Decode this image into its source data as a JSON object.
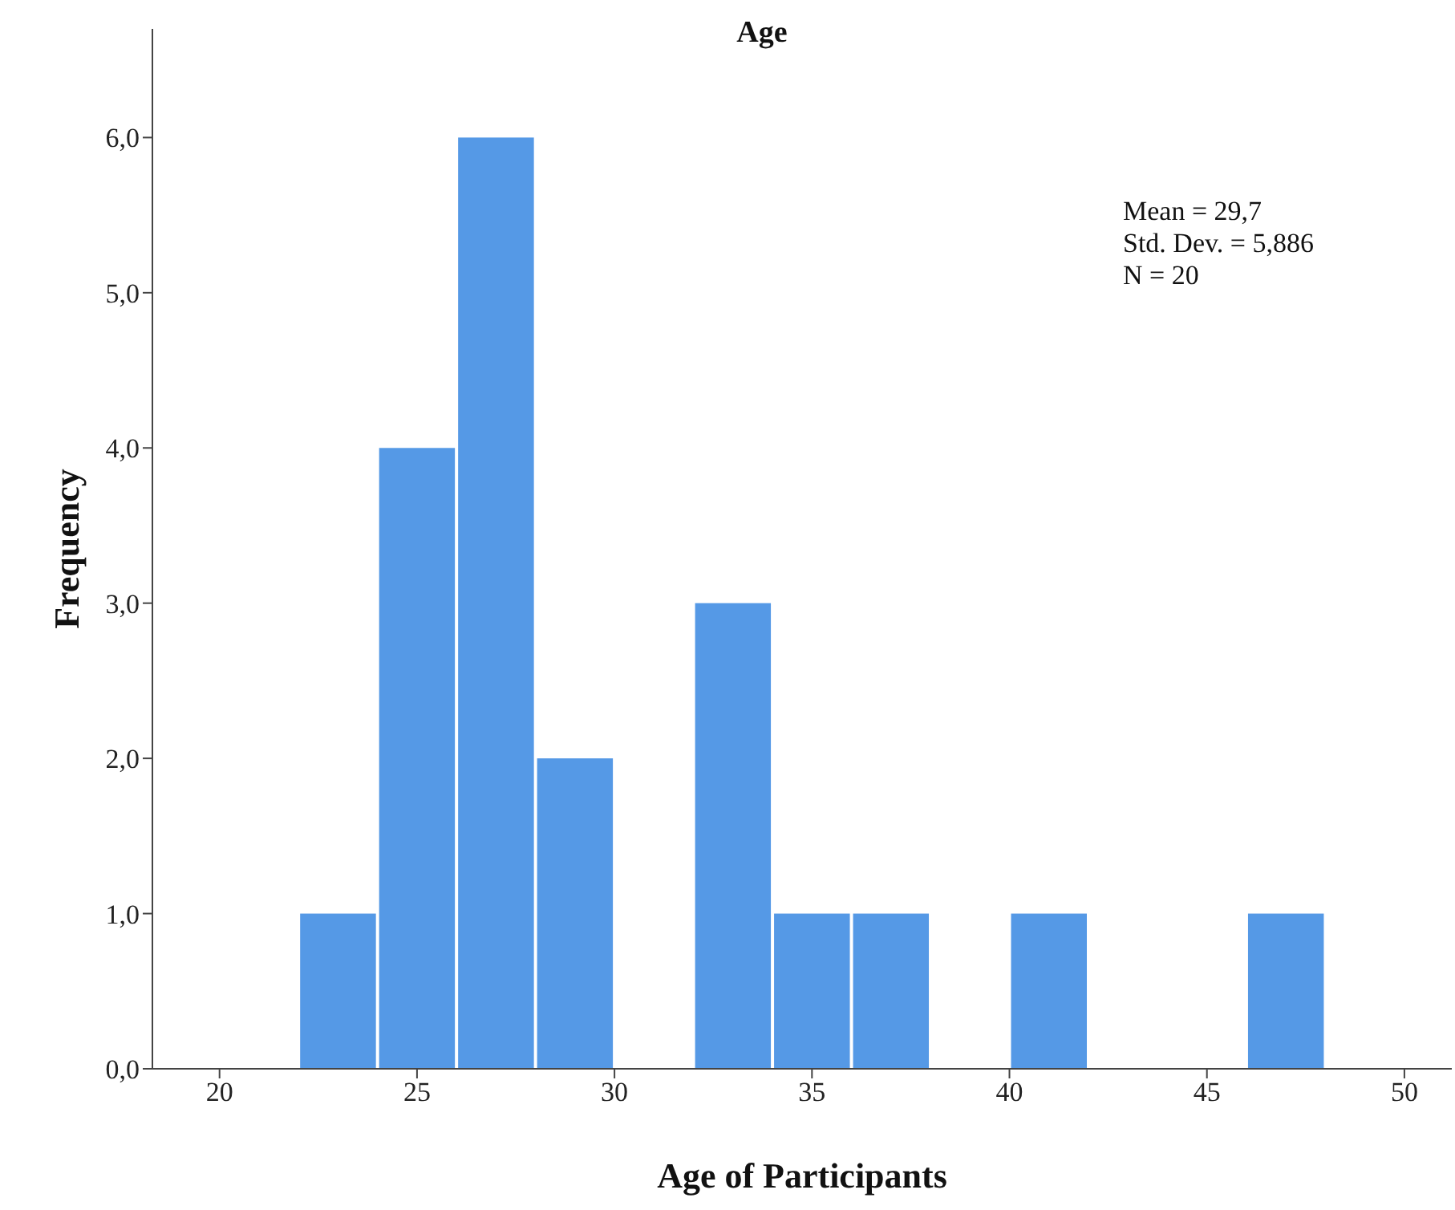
{
  "chart_data": {
    "type": "histogram",
    "title": "Age",
    "xlabel": "Age of Participants",
    "ylabel": "Frequency",
    "bins": [
      22,
      24,
      26,
      28,
      30,
      32,
      34,
      36,
      38,
      40,
      42,
      44,
      46,
      48
    ],
    "values": [
      1,
      4,
      6,
      2,
      0,
      3,
      1,
      1,
      0,
      1,
      0,
      0,
      1
    ],
    "color": "#5599e6",
    "xlim": [
      18.3,
      51.2
    ],
    "xticks": [
      20,
      25,
      30,
      35,
      40,
      45,
      50
    ],
    "ylim": [
      0,
      6.7
    ],
    "yticks": [
      {
        "value": 0,
        "label": "0,0"
      },
      {
        "value": 1,
        "label": "1,0"
      },
      {
        "value": 2,
        "label": "2,0"
      },
      {
        "value": 3,
        "label": "3,0"
      },
      {
        "value": 4,
        "label": "4,0"
      },
      {
        "value": 5,
        "label": "5,0"
      },
      {
        "value": 6,
        "label": "6,0"
      }
    ],
    "grid": false,
    "legend": false,
    "annotations": [
      "Mean = 29,7",
      "Std. Dev. = 5,886",
      "N = 20"
    ]
  }
}
